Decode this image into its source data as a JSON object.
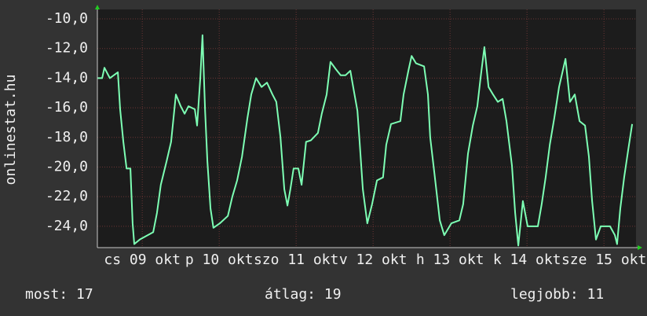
{
  "chart_data": {
    "type": "line",
    "ylabel": "onlinestat.hu",
    "color": "#7dffb4",
    "x": [
      0,
      1.5,
      2.2,
      3.9,
      6.4,
      7.1,
      8.1,
      9.1,
      10.3,
      11.0,
      11.5,
      13.2,
      17.4,
      18.6,
      19.8,
      21.6,
      23.0,
      24.5,
      26.0,
      27.2,
      28.4,
      30.4,
      31.1,
      32.1,
      32.8,
      33.6,
      34.3,
      35.3,
      36.2,
      38.2,
      40.7,
      42.1,
      43.6,
      45.1,
      46.8,
      48.0,
      49.5,
      51.2,
      52.9,
      54.6,
      55.8,
      57.1,
      58.3,
      59.3,
      60.2,
      61.2,
      62.7,
      63.7,
      65.1,
      66.6,
      68.8,
      70.0,
      71.5,
      72.7,
      74.4,
      75.9,
      77.4,
      78.9,
      79.8,
      81.1,
      81.8,
      82.8,
      84.2,
      85.7,
      87.2,
      89.1,
      90.1,
      91.6,
      94.5,
      95.5,
      97.0,
      98.0,
      99.4,
      101.9,
      103.1,
      103.8,
      105.1,
      106.8,
      108.2,
      110.4,
      112.9,
      114.1,
      115.6,
      117.1,
      118.5,
      119.5,
      120.7,
      122.0,
      123.4,
      124.9,
      126.4,
      127.6,
      129.3,
      130.3,
      131.3,
      132.7,
      134.2,
      137.4,
      138.6,
      139.8,
      141.1,
      142.5,
      144.0,
      146.0,
      147.4,
      148.9,
      150.4,
      152.1,
      153.3,
      154.3,
      155.5,
      157.0,
      159.9,
      161.4,
      162.1,
      163.1,
      164.3,
      165.6,
      166.8
    ],
    "values": [
      -14.0,
      -14.0,
      -13.3,
      -14.0,
      -13.6,
      -16.1,
      -18.3,
      -20.1,
      -20.1,
      -23.8,
      -25.2,
      -24.9,
      -24.4,
      -23.1,
      -21.2,
      -19.6,
      -18.3,
      -15.1,
      -15.9,
      -16.4,
      -15.9,
      -16.1,
      -17.2,
      -14.0,
      -11.1,
      -16.2,
      -19.6,
      -22.8,
      -24.1,
      -23.8,
      -23.3,
      -22.0,
      -20.9,
      -19.3,
      -16.7,
      -15.1,
      -14.0,
      -14.6,
      -14.3,
      -15.1,
      -15.6,
      -18.0,
      -21.5,
      -22.6,
      -21.5,
      -20.1,
      -20.1,
      -21.2,
      -18.3,
      -18.2,
      -17.7,
      -16.4,
      -15.1,
      -12.9,
      -13.4,
      -13.8,
      -13.8,
      -13.5,
      -14.6,
      -16.2,
      -18.3,
      -21.5,
      -23.8,
      -22.5,
      -20.9,
      -20.7,
      -18.5,
      -17.1,
      -16.9,
      -15.1,
      -13.5,
      -12.5,
      -13.0,
      -13.2,
      -15.1,
      -18.0,
      -20.4,
      -23.6,
      -24.6,
      -23.8,
      -23.6,
      -22.5,
      -19.1,
      -17.2,
      -15.9,
      -14.0,
      -11.9,
      -14.6,
      -15.1,
      -15.6,
      -15.4,
      -16.9,
      -19.9,
      -23.1,
      -25.3,
      -22.3,
      -24.0,
      -24.0,
      -22.5,
      -20.7,
      -18.5,
      -16.7,
      -14.6,
      -12.7,
      -15.6,
      -15.1,
      -16.9,
      -17.2,
      -19.3,
      -22.3,
      -24.9,
      -24.0,
      -24.0,
      -24.6,
      -25.2,
      -22.8,
      -20.7,
      -18.8,
      -17.1
    ],
    "xlim": [
      0,
      168
    ],
    "xticks": [
      {
        "value": 14,
        "label": "cs 09 okt"
      },
      {
        "value": 38,
        "label": "p 10 okt"
      },
      {
        "value": 62,
        "label": "szo 11 okt"
      },
      {
        "value": 86,
        "label": "v 12 okt"
      },
      {
        "value": 110,
        "label": "h 13 okt"
      },
      {
        "value": 134,
        "label": "k 14 okt"
      },
      {
        "value": 158,
        "label": "sze 15 okt"
      }
    ],
    "ylim": [
      -25.44,
      -9.36
    ],
    "yticks": [
      {
        "value": -10,
        "label": "-10,0"
      },
      {
        "value": -12,
        "label": "-12,0"
      },
      {
        "value": -14,
        "label": "-14,0"
      },
      {
        "value": -16,
        "label": "-16,0"
      },
      {
        "value": -18,
        "label": "-18,0"
      },
      {
        "value": -20,
        "label": "-20,0"
      },
      {
        "value": -22,
        "label": "-22,0"
      },
      {
        "value": -24,
        "label": "-24,0"
      }
    ],
    "grid": true,
    "annotations": [
      "most: 17",
      "átlag: 19",
      "legjobb: 11"
    ]
  }
}
